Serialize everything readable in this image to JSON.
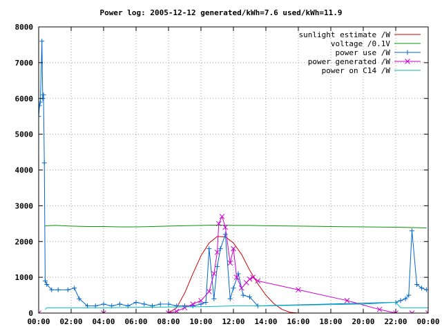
{
  "chart_data": {
    "type": "line",
    "title": "Power log: 2005-12-12 generated/kWh=7.6 used/kWh=11.9",
    "xlabel": "",
    "ylabel": "",
    "x_unit": "hours",
    "xlim": [
      0,
      24
    ],
    "ylim": [
      0,
      8000
    ],
    "grid": true,
    "legend_position": "top-right",
    "x_ticks": [
      0,
      2,
      4,
      6,
      8,
      10,
      12,
      14,
      16,
      18,
      20,
      22,
      24
    ],
    "x_tick_labels": [
      "00:00",
      "02:00",
      "04:00",
      "06:00",
      "08:00",
      "10:00",
      "12:00",
      "14:00",
      "16:00",
      "18:00",
      "20:00",
      "22:00",
      "00:00"
    ],
    "y_ticks": [
      0,
      1000,
      2000,
      3000,
      4000,
      5000,
      6000,
      7000,
      8000
    ],
    "y_tick_labels": [
      "0",
      "1000",
      "2000",
      "3000",
      "4000",
      "5000",
      "6000",
      "7000",
      "8000"
    ],
    "series": [
      {
        "name": "sunlight estimate /W",
        "color": "#cc0000",
        "marker": "none",
        "x": [
          8.0,
          8.5,
          9.0,
          9.5,
          10.0,
          10.5,
          11.0,
          11.5,
          12.0,
          12.5,
          13.0,
          13.5,
          14.0,
          14.5,
          15.0,
          15.5,
          16.0
        ],
        "y": [
          0,
          150,
          560,
          1100,
          1600,
          1960,
          2140,
          2130,
          1960,
          1640,
          1200,
          820,
          500,
          260,
          100,
          20,
          0
        ]
      },
      {
        "name": "voltage /0.1V",
        "color": "#009900",
        "marker": "none",
        "x": [
          0.4,
          0.5,
          1.0,
          2.0,
          3.0,
          4.0,
          5.0,
          6.0,
          7.0,
          8.0,
          9.0,
          10.0,
          11.0,
          12.0,
          13.0,
          14.0,
          16.0,
          18.0,
          20.0,
          22.0,
          23.0,
          23.9
        ],
        "y": [
          2430,
          2440,
          2450,
          2430,
          2420,
          2420,
          2410,
          2410,
          2420,
          2430,
          2440,
          2450,
          2460,
          2450,
          2450,
          2440,
          2430,
          2420,
          2410,
          2400,
          2390,
          2380
        ]
      },
      {
        "name": "power use /W",
        "color": "#0066cc",
        "marker": "plus",
        "x": [
          0.0,
          0.05,
          0.1,
          0.2,
          0.25,
          0.3,
          0.35,
          0.4,
          0.5,
          0.8,
          1.2,
          1.8,
          2.2,
          2.5,
          3.0,
          3.5,
          4.0,
          4.5,
          5.0,
          5.5,
          6.0,
          6.5,
          7.0,
          7.5,
          8.0,
          8.5,
          9.0,
          9.5,
          10.0,
          10.3,
          10.5,
          10.8,
          11.0,
          11.2,
          11.5,
          11.8,
          12.0,
          12.3,
          12.6,
          13.0,
          13.5,
          22.0,
          22.3,
          22.6,
          22.8,
          23.0,
          23.3,
          23.6,
          23.9
        ],
        "y": [
          5500,
          5800,
          5900,
          7600,
          6000,
          6100,
          4200,
          900,
          800,
          650,
          650,
          650,
          700,
          400,
          200,
          200,
          250,
          200,
          250,
          200,
          300,
          250,
          200,
          250,
          250,
          200,
          200,
          200,
          250,
          300,
          1800,
          400,
          1300,
          1800,
          2200,
          400,
          700,
          1100,
          500,
          450,
          200,
          300,
          350,
          400,
          500,
          2300,
          800,
          700,
          650
        ]
      },
      {
        "name": "power generated /W",
        "color": "#cc00cc",
        "marker": "cross",
        "x": [
          0.0,
          4.0,
          8.0,
          8.5,
          9.0,
          9.5,
          10.0,
          10.5,
          10.8,
          11.0,
          11.1,
          11.3,
          11.5,
          11.8,
          12.0,
          12.2,
          12.5,
          12.8,
          13.0,
          13.2,
          13.5,
          16.0,
          19.0,
          21.0,
          22.0,
          23.0,
          24.0
        ],
        "y": [
          0,
          0,
          0,
          50,
          150,
          250,
          350,
          600,
          1100,
          1700,
          2500,
          2700,
          2400,
          1400,
          1800,
          1000,
          700,
          850,
          950,
          1000,
          900,
          650,
          350,
          100,
          0,
          0,
          0
        ]
      },
      {
        "name": "power on C14 /W",
        "color": "#00bbbb",
        "marker": "none",
        "x": [
          0.4,
          0.5,
          2.0,
          4.0,
          6.0,
          8.0,
          10.0,
          12.0,
          14.0,
          16.0,
          18.0,
          20.0,
          22.0,
          22.3,
          24.0
        ],
        "y": [
          100,
          150,
          150,
          150,
          160,
          170,
          180,
          200,
          200,
          220,
          240,
          250,
          300,
          150,
          150
        ]
      }
    ]
  }
}
